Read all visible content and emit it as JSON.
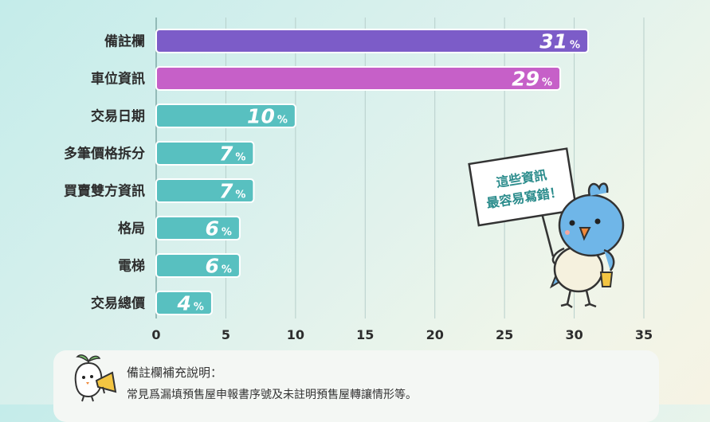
{
  "chart_data": {
    "type": "bar",
    "orientation": "horizontal",
    "categories": [
      "備註欄",
      "車位資訊",
      "交易日期",
      "多筆價格拆分",
      "買賣雙方資訊",
      "格局",
      "電梯",
      "交易總價"
    ],
    "values": [
      31,
      29,
      10,
      7,
      7,
      6,
      6,
      4
    ],
    "value_labels": [
      "31",
      "29",
      "10",
      "7",
      "7",
      "6",
      "6",
      "4"
    ],
    "unit": "%",
    "xlim": [
      0,
      35
    ],
    "xticks": [
      0,
      5,
      10,
      15,
      20,
      25,
      30,
      35
    ],
    "grid": true,
    "bar_colors": [
      "#7c5cc8",
      "#c660c8",
      "#58c0c0",
      "#58c0c0",
      "#58c0c0",
      "#58c0c0",
      "#58c0c0",
      "#58c0c0"
    ],
    "bar_stroke_color": "#ffffff"
  },
  "sign": {
    "lines": [
      "這些資訊",
      "最容易寫錯！"
    ]
  },
  "note": {
    "title": "備註欄補充說明：",
    "text": "常見爲漏填預售屋申報書序號及未註明預售屋轉讓情形等。"
  },
  "icons": {
    "mascot": "blue-bird-icon",
    "note": "megaphone-mascot-icon"
  }
}
